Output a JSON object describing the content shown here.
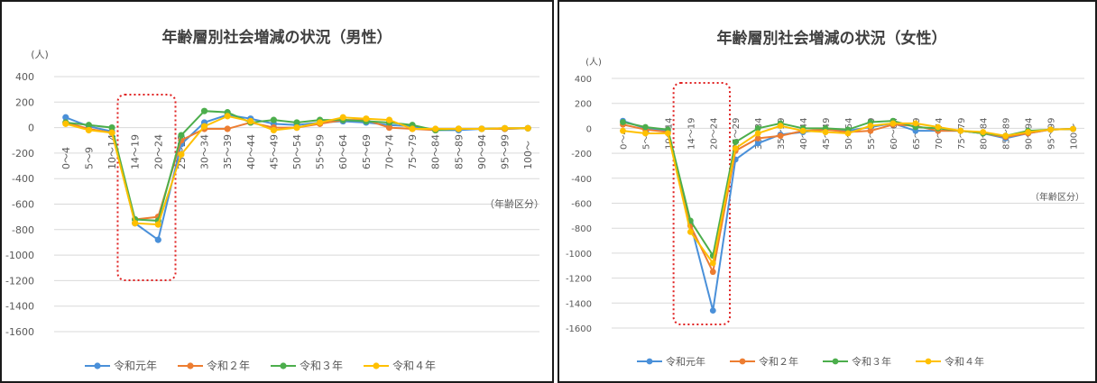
{
  "chart_data": [
    {
      "type": "line",
      "title": "年齢層別社会増減の状況（男性）",
      "ylabel": "(人)",
      "xlabel": "（年齢区分）",
      "ylim": [
        -1600,
        400
      ],
      "yticks": [
        400,
        200,
        0,
        -200,
        -400,
        -600,
        -800,
        -1000,
        -1200,
        -1400,
        -1600
      ],
      "categories": [
        "0～4",
        "5～9",
        "10～14",
        "14～19",
        "20～24",
        "25～29",
        "30～34",
        "35～39",
        "40～44",
        "45～49",
        "50～54",
        "55～59",
        "60～64",
        "65～69",
        "70～74",
        "75～79",
        "80～84",
        "85～89",
        "90～94",
        "95～99",
        "100～"
      ],
      "highlight": [
        "14～19",
        "20～24"
      ],
      "legend_position": "bottom",
      "grid": true,
      "series": [
        {
          "name": "令和元年",
          "color": "#4a90d9",
          "values": [
            80,
            10,
            -30,
            -750,
            -880,
            -130,
            40,
            100,
            70,
            30,
            20,
            40,
            50,
            40,
            20,
            10,
            -20,
            -20,
            -10,
            -10,
            -5
          ]
        },
        {
          "name": "令和２年",
          "color": "#ed7d31",
          "values": [
            40,
            -10,
            -40,
            -720,
            -700,
            -100,
            -10,
            -10,
            40,
            0,
            0,
            30,
            60,
            60,
            0,
            -10,
            -20,
            -10,
            -10,
            -10,
            -5
          ]
        },
        {
          "name": "令和３年",
          "color": "#4cae4c",
          "values": [
            40,
            20,
            0,
            -720,
            -730,
            -60,
            130,
            120,
            40,
            60,
            40,
            60,
            60,
            50,
            40,
            20,
            -20,
            -10,
            -10,
            -5,
            -5
          ]
        },
        {
          "name": "令和４年",
          "color": "#ffc000",
          "values": [
            30,
            -20,
            -40,
            -750,
            -760,
            -210,
            10,
            90,
            50,
            -20,
            0,
            40,
            80,
            70,
            60,
            -10,
            -10,
            -10,
            -10,
            -5,
            -5
          ]
        }
      ]
    },
    {
      "type": "line",
      "title": "年齢層別社会増減の状況（女性）",
      "ylabel": "(人)",
      "xlabel": "（年齢区分）",
      "ylim": [
        -1600,
        400
      ],
      "yticks": [
        400,
        200,
        0,
        -200,
        -400,
        -600,
        -800,
        -1000,
        -1200,
        -1400,
        -1600
      ],
      "categories": [
        "0～4",
        "5～9",
        "10～14",
        "14～19",
        "20～24",
        "25～29",
        "30～34",
        "35～39",
        "40～44",
        "45～49",
        "50～54",
        "55～59",
        "60～64",
        "65～69",
        "70～74",
        "75～79",
        "80～84",
        "85～89",
        "90～94",
        "95～99",
        "100～"
      ],
      "highlight": [
        "14～19",
        "20～24"
      ],
      "legend_position": "bottom",
      "grid": true,
      "series": [
        {
          "name": "令和元年",
          "color": "#4a90d9",
          "values": [
            60,
            0,
            -20,
            -760,
            -1460,
            -250,
            -120,
            -50,
            -30,
            -10,
            -20,
            10,
            40,
            -20,
            -20,
            -20,
            -40,
            -80,
            -40,
            -10,
            -5
          ]
        },
        {
          "name": "令和２年",
          "color": "#ed7d31",
          "values": [
            30,
            -10,
            -30,
            -780,
            -1150,
            -180,
            -80,
            -60,
            -20,
            -10,
            -30,
            -20,
            30,
            20,
            -20,
            -20,
            -40,
            -70,
            -40,
            -10,
            -5
          ]
        },
        {
          "name": "令和３年",
          "color": "#4cae4c",
          "values": [
            50,
            10,
            -10,
            -740,
            -1020,
            -110,
            0,
            40,
            0,
            0,
            -10,
            50,
            60,
            10,
            0,
            -20,
            -40,
            -60,
            -20,
            -10,
            -5
          ]
        },
        {
          "name": "令和４年",
          "color": "#ffc000",
          "values": [
            -20,
            -40,
            -40,
            -830,
            -1080,
            -160,
            -40,
            20,
            -20,
            -30,
            -40,
            20,
            40,
            40,
            10,
            -20,
            -30,
            -60,
            -30,
            -10,
            -5
          ]
        }
      ]
    }
  ]
}
